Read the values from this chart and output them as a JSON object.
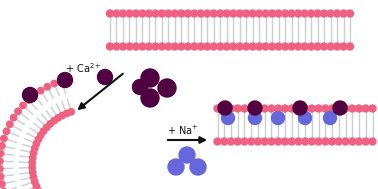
{
  "bg_color": "#ffffff",
  "lipid_head_color": "#f06080",
  "lipid_tail_color": "#c8d0d0",
  "ca_ion_color": "#500040",
  "na_ion_color": "#6666dd",
  "arrow_color": "#111111",
  "text_color": "#111111",
  "figsize": [
    3.78,
    1.89
  ],
  "dpi": 100
}
